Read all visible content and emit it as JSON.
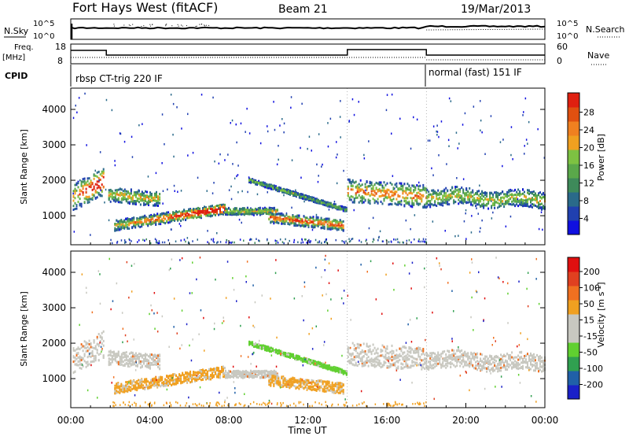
{
  "header": {
    "station": "Fort Hays West (fitACF)",
    "beam": "Beam 21",
    "date": "19/Mar/2013"
  },
  "side_labels": {
    "nsky": "N.Sky",
    "nsearch": "N.Search",
    "freq": "Freq.",
    "freq_unit": "[MHz]",
    "nave": "Nave",
    "cpid": "CPID"
  },
  "noise_axis": {
    "left_top": "10^5",
    "left_bottom": "10^0",
    "right_top": "10^5",
    "right_bottom": "10^0"
  },
  "freq_axis": {
    "left_ticks": [
      "18",
      "8"
    ],
    "right_ticks": [
      "60",
      "0"
    ]
  },
  "cpid_segments": [
    {
      "label": "rbsp CT-trig 220 IF",
      "start_hour": 0,
      "end_hour": 18
    },
    {
      "label": "normal (fast) 151 IF",
      "start_hour": 18,
      "end_hour": 24
    }
  ],
  "chart_data": [
    {
      "type": "heatmap",
      "name": "power",
      "ylabel": "Slant Range [km]",
      "ylim": [
        180,
        4600
      ],
      "yticks": [
        "1000",
        "2000",
        "3000",
        "4000"
      ],
      "colorbar": {
        "label": "Power [dB]",
        "ticks": [
          "4",
          "8",
          "12",
          "16",
          "20",
          "24",
          "28"
        ],
        "colors": [
          "#1010e0",
          "#2040b0",
          "#2a6a8a",
          "#3e8a5a",
          "#5aa84a",
          "#7dc242",
          "#f0a020",
          "#f08020",
          "#e05010",
          "#e02010"
        ]
      }
    },
    {
      "type": "heatmap",
      "name": "velocity",
      "ylabel": "Slant Range [km]",
      "ylim": [
        180,
        4600
      ],
      "yticks": [
        "1000",
        "2000",
        "3000",
        "4000"
      ],
      "colorbar": {
        "label": "Velocity [m s^-1]",
        "ticks": [
          "200",
          "100",
          "50",
          "15",
          "-15",
          "-50",
          "-100",
          "-200"
        ],
        "colors": [
          "#1a20c8",
          "#2060a8",
          "#30a050",
          "#60d030",
          "#c8c8c0",
          "#c8c8c0",
          "#f0a020",
          "#f07020",
          "#e04020",
          "#e01010"
        ]
      }
    }
  ],
  "time_axis": {
    "label": "Time UT",
    "ticks": [
      "00:00",
      "04:00",
      "08:00",
      "12:00",
      "16:00",
      "20:00",
      "00:00"
    ]
  }
}
